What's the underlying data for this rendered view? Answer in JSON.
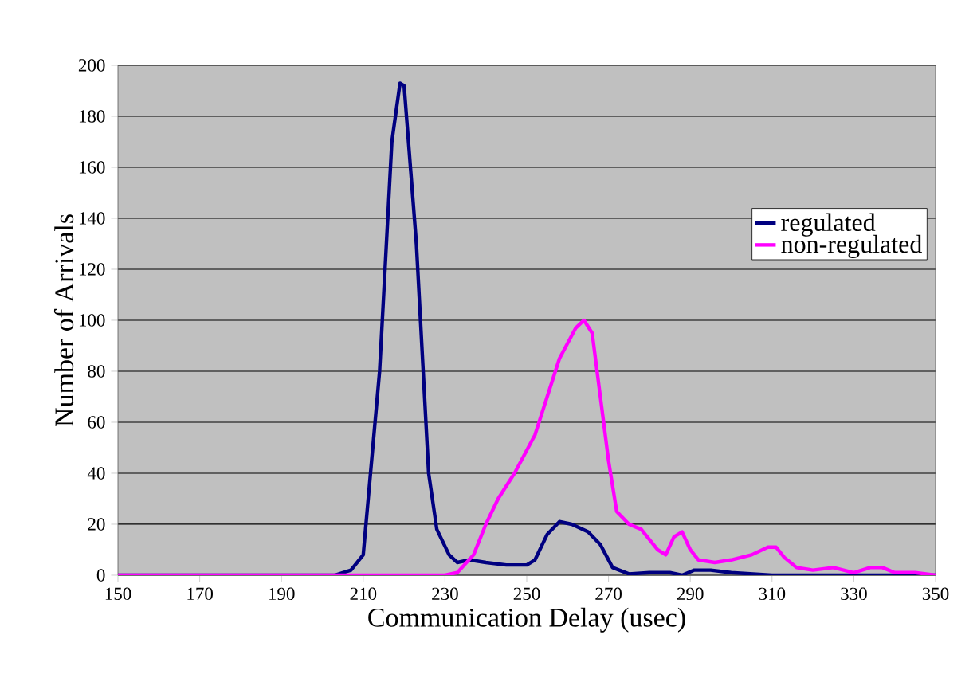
{
  "chart_data": {
    "type": "line",
    "xlabel": "Communication Delay (usec)",
    "ylabel": "Number of Arrivals",
    "xlim": [
      150,
      350
    ],
    "xticks": [
      150,
      170,
      190,
      210,
      230,
      250,
      270,
      290,
      310,
      330,
      350
    ],
    "ylim": [
      0,
      200
    ],
    "yticks": [
      0,
      20,
      40,
      60,
      80,
      100,
      120,
      140,
      160,
      180,
      200
    ],
    "grid": "y",
    "legend": "right",
    "marker": "none",
    "line_style": "solid",
    "series": [
      {
        "name": "regulated",
        "color": "#000080",
        "x": [
          150,
          200,
          203,
          207,
          210,
          214,
          217,
          219,
          220,
          223,
          226,
          228,
          231,
          233,
          236,
          240,
          245,
          250,
          252,
          255,
          258,
          261,
          265,
          268,
          271,
          275,
          280,
          285,
          288,
          291,
          295,
          300,
          310,
          350
        ],
        "values": [
          0,
          0,
          0,
          2,
          8,
          80,
          170,
          193,
          192,
          130,
          40,
          18,
          8,
          5,
          6,
          5,
          4,
          4,
          6,
          16,
          21,
          20,
          17,
          12,
          3,
          0.5,
          1,
          1,
          0,
          2,
          2,
          1,
          0,
          0
        ]
      },
      {
        "name": "non-regulated",
        "color": "#ff00ff",
        "x": [
          150,
          230,
          233,
          237,
          240,
          243,
          247,
          252,
          255,
          258,
          262,
          264,
          266,
          268,
          270,
          272,
          275,
          278,
          282,
          284,
          286,
          288,
          290,
          292,
          296,
          300,
          305,
          309,
          311,
          313,
          316,
          320,
          325,
          330,
          334,
          337,
          340,
          345,
          350
        ],
        "values": [
          0,
          0,
          1,
          8,
          20,
          30,
          40,
          55,
          70,
          85,
          97,
          100,
          95,
          70,
          45,
          25,
          20,
          18,
          10,
          8,
          15,
          17,
          10,
          6,
          5,
          6,
          8,
          11,
          11,
          7,
          3,
          2,
          3,
          1,
          3,
          3,
          1,
          1,
          0
        ]
      }
    ]
  }
}
